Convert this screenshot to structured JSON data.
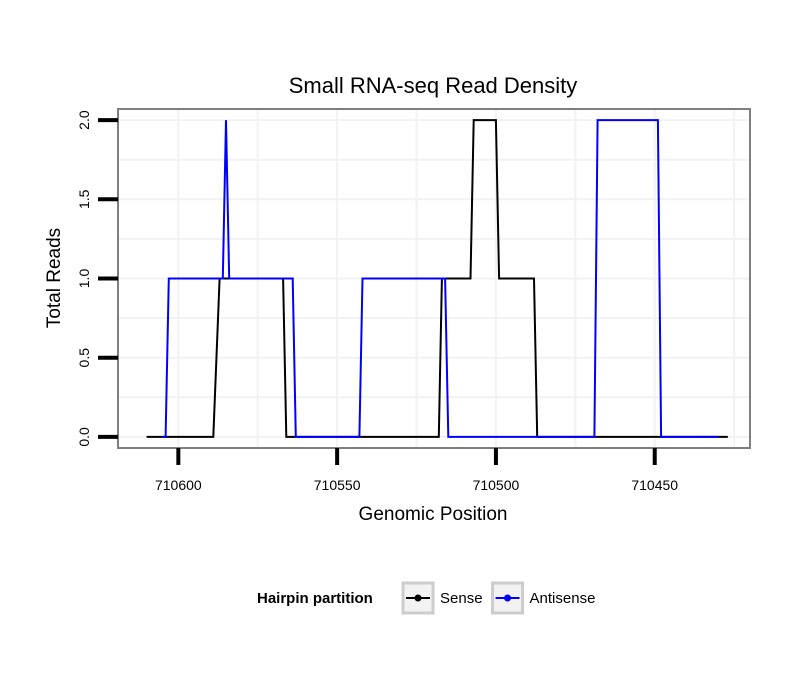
{
  "chart_data": {
    "type": "line",
    "title": "Small RNA-seq Read Density",
    "xlabel": "Genomic Position",
    "ylabel": "Total Reads",
    "x_reversed": true,
    "xlim": [
      710619,
      710420
    ],
    "ylim": [
      -0.07,
      2.07
    ],
    "x_ticks": [
      710600,
      710550,
      710500,
      710450
    ],
    "x_tick_labels": [
      "710600",
      "710550",
      "710500",
      "710450"
    ],
    "y_ticks": [
      0,
      0.5,
      1,
      1.5,
      2
    ],
    "y_tick_labels": [
      "0.0",
      "0.5",
      "1.0",
      "1.5",
      "2.0"
    ],
    "grid": true,
    "legend_title": "Hairpin partition",
    "legend_position": "bottom",
    "series": [
      {
        "name": "Sense",
        "color": "#000000",
        "x": [
          710610,
          710589,
          710587,
          710567,
          710566,
          710518,
          710517,
          710508,
          710507,
          710500,
          710499,
          710488,
          710487,
          710478,
          710477,
          710476,
          710475,
          710427
        ],
        "y": [
          0,
          0,
          1,
          1,
          0,
          0,
          1,
          1,
          2,
          2,
          1,
          1,
          0,
          0,
          0,
          0,
          0,
          0
        ]
      },
      {
        "name": "Antisense",
        "color": "#0000ff",
        "x": [
          710605,
          710604,
          710603,
          710586,
          710585,
          710584,
          710564,
          710563,
          710543,
          710542,
          710516,
          710515,
          710489,
          710488,
          710469,
          710468,
          710449,
          710448,
          710431,
          710430
        ],
        "y": [
          0,
          0,
          1,
          1,
          2,
          1,
          1,
          0,
          0,
          1,
          1,
          0,
          0,
          0,
          0,
          2,
          2,
          0,
          0,
          0
        ]
      }
    ]
  }
}
